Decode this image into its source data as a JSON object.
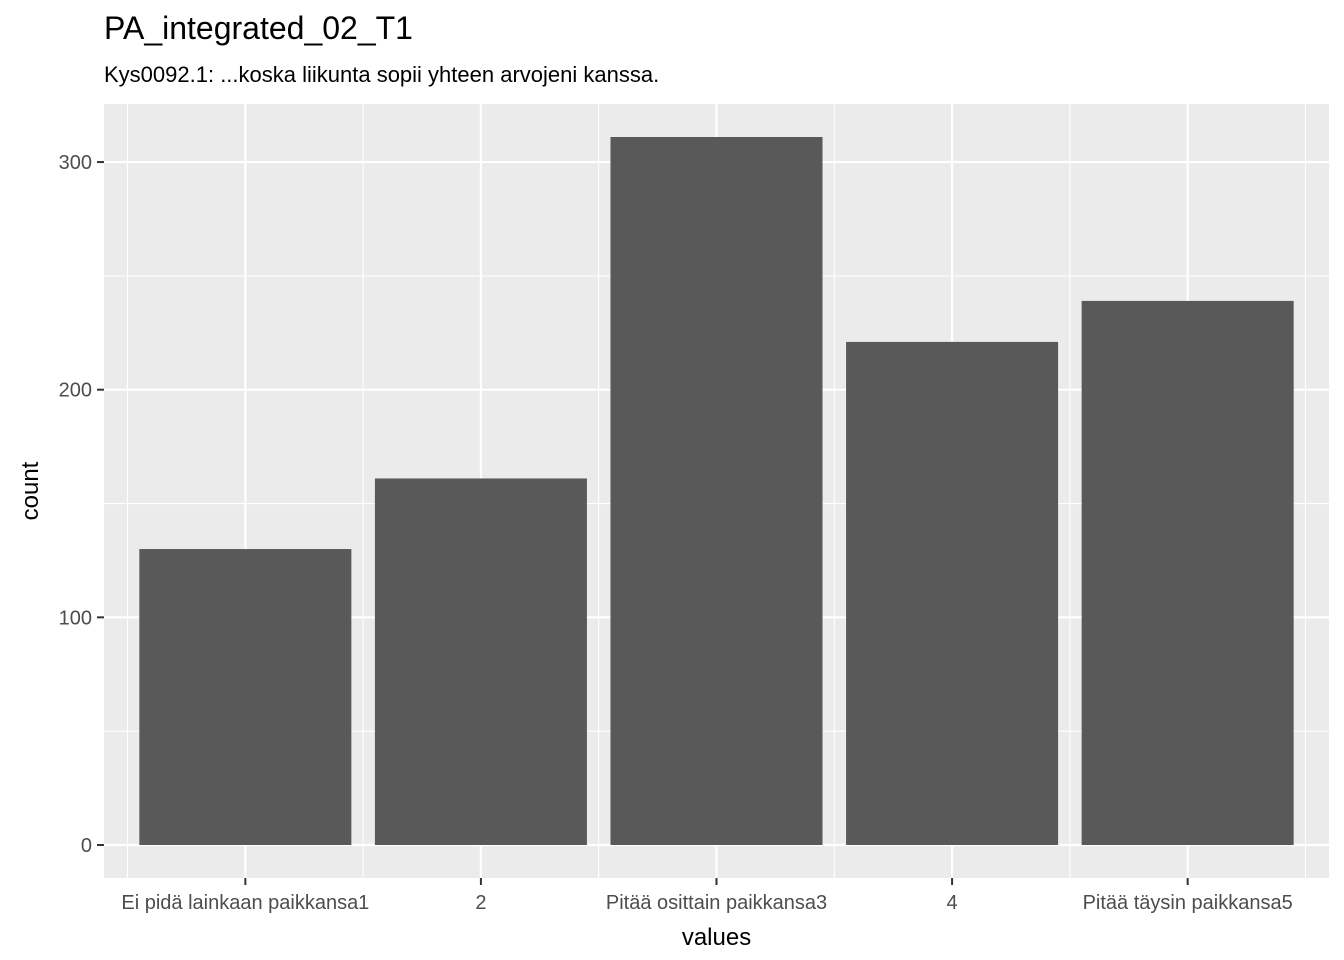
{
  "header": {
    "title": "PA_integrated_02_T1",
    "subtitle": "Kys0092.1: ...koska liikunta sopii yhteen arvojeni kanssa."
  },
  "colors": {
    "panel_background": "#ebebeb",
    "grid_major": "#ffffff",
    "bar_fill": "#595959",
    "tick_text": "#4d4d4d"
  },
  "chart_data": {
    "type": "bar",
    "title": "PA_integrated_02_T1",
    "subtitle": "Kys0092.1: ...koska liikunta sopii yhteen arvojeni kanssa.",
    "xlabel": "values",
    "ylabel": "count",
    "categories": [
      "Ei pidä lainkaan paikkansa1",
      "2",
      "Pitää osittain paikkansa3",
      "4",
      "Pitää täysin paikkansa5"
    ],
    "values": [
      130,
      161,
      311,
      221,
      239
    ],
    "ylim": [
      -14.5,
      325.5
    ],
    "yticks": [
      0,
      100,
      200,
      300
    ],
    "grid": true,
    "legend": "none"
  }
}
